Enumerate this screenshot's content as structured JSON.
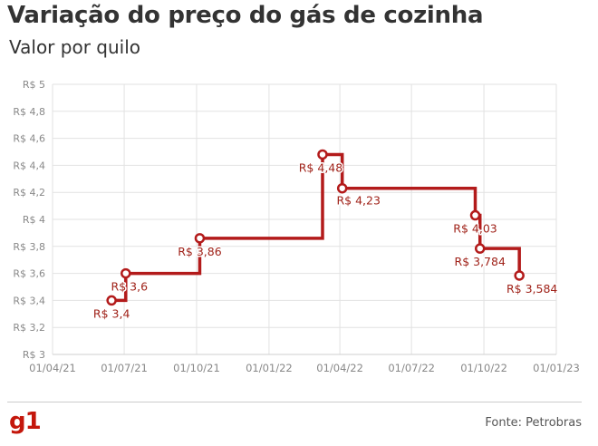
{
  "header": {
    "title": "Variação do preço do gás de cozinha",
    "subtitle": "Valor por quilo"
  },
  "footer": {
    "logo": "g1",
    "source": "Fonte: Petrobras"
  },
  "colors": {
    "line": "#b31b1b",
    "label": "#a0231a",
    "grid": "#e2e2e2",
    "axis_text": "#888888",
    "logo": "#c4170c"
  },
  "chart_data": {
    "type": "line",
    "step": true,
    "title": "Variação do preço do gás de cozinha",
    "subtitle": "Valor por quilo",
    "xlabel": "",
    "ylabel": "",
    "ylim": [
      3,
      5
    ],
    "y_ticks": [
      3,
      3.2,
      3.4,
      3.6,
      3.8,
      4,
      4.2,
      4.4,
      4.6,
      4.8,
      5
    ],
    "y_tick_labels": [
      "R$ 3",
      "R$ 3,2",
      "R$ 3,4",
      "R$ 3,6",
      "R$ 3,8",
      "R$ 4",
      "R$ 4,2",
      "R$ 4,4",
      "R$ 4,6",
      "R$ 4,8",
      "R$ 5"
    ],
    "xlim": [
      "2021-04-01",
      "2023-01-01"
    ],
    "x_ticks": [
      "2021-04-01",
      "2021-07-01",
      "2021-10-01",
      "2022-01-01",
      "2022-04-01",
      "2022-07-01",
      "2022-10-01",
      "2023-01-01"
    ],
    "x_tick_labels": [
      "01/04/21",
      "01/07/21",
      "01/10/21",
      "01/01/22",
      "01/04/22",
      "01/07/22",
      "01/10/22",
      "01/01/23"
    ],
    "grid": true,
    "points": [
      {
        "date": "2021-06-15",
        "value": 3.4,
        "label": "R$ 3,4"
      },
      {
        "date": "2021-07-03",
        "value": 3.6,
        "label": "R$ 3,6"
      },
      {
        "date": "2021-10-05",
        "value": 3.86,
        "label": "R$ 3,86"
      },
      {
        "date": "2022-03-10",
        "value": 4.48,
        "label": "R$ 4,48"
      },
      {
        "date": "2022-04-04",
        "value": 4.23,
        "label": "R$ 4,23"
      },
      {
        "date": "2022-09-20",
        "value": 4.03,
        "label": "R$ 4,03"
      },
      {
        "date": "2022-09-26",
        "value": 3.784,
        "label": "R$ 3,784"
      },
      {
        "date": "2022-11-15",
        "value": 3.584,
        "label": "R$ 3,584"
      }
    ]
  }
}
